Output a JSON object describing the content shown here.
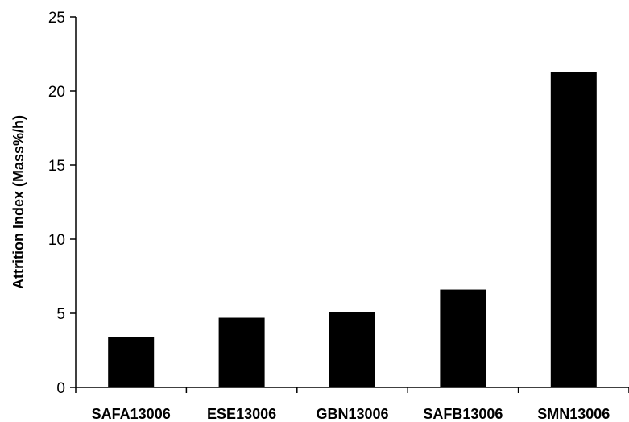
{
  "chart_data": {
    "type": "bar",
    "title": "",
    "xlabel": "",
    "ylabel": "Attrition Index (Mass%/h)",
    "categories": [
      "SAFA13006",
      "ESE13006",
      "GBN13006",
      "SAFB13006",
      "SMN13006"
    ],
    "values": [
      3.4,
      4.7,
      5.1,
      6.6,
      21.3
    ],
    "ylim": [
      0,
      25
    ],
    "yticks": [
      0,
      5,
      10,
      15,
      20,
      25
    ],
    "grid": false,
    "legend": "none",
    "bar_color": "#000000"
  }
}
